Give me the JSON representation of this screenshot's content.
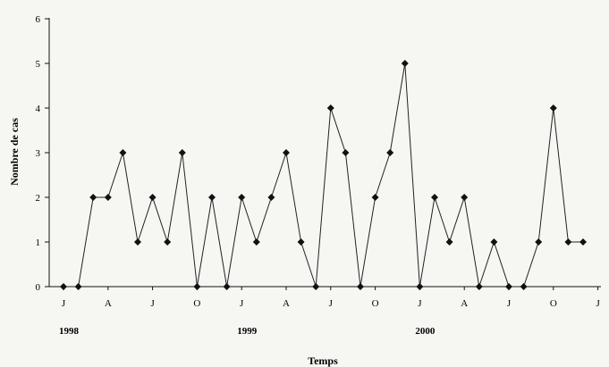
{
  "chart_data": {
    "type": "line",
    "title": "",
    "xlabel": "Temps",
    "ylabel": "Nombre de cas",
    "ylim": [
      0,
      6
    ],
    "yticks": [
      "0",
      "1",
      "2",
      "3",
      "4",
      "5",
      "6"
    ],
    "month_ticks": [
      "J",
      "A",
      "J",
      "O",
      "J",
      "A",
      "J",
      "O",
      "J",
      "A",
      "J",
      "O",
      "J"
    ],
    "years": [
      "1998",
      "1999",
      "2000"
    ],
    "x": [
      "1998-01",
      "1998-02",
      "1998-03",
      "1998-04",
      "1998-05",
      "1998-06",
      "1998-07",
      "1998-08",
      "1998-09",
      "1998-10",
      "1998-11",
      "1998-12",
      "1999-01",
      "1999-02",
      "1999-03",
      "1999-04",
      "1999-05",
      "1999-06",
      "1999-07",
      "1999-08",
      "1999-09",
      "1999-10",
      "1999-11",
      "1999-12",
      "2000-01",
      "2000-02",
      "2000-03",
      "2000-04",
      "2000-05",
      "2000-06",
      "2000-07",
      "2000-08",
      "2000-09",
      "2000-10",
      "2000-11",
      "2000-12"
    ],
    "values": [
      0,
      0,
      2,
      2,
      3,
      1,
      2,
      1,
      3,
      0,
      2,
      0,
      2,
      1,
      2,
      3,
      1,
      0,
      4,
      3,
      0,
      2,
      3,
      5,
      0,
      2,
      1,
      2,
      0,
      1,
      0,
      0,
      1,
      4,
      1,
      1
    ],
    "grid": false,
    "marker": "diamond"
  }
}
